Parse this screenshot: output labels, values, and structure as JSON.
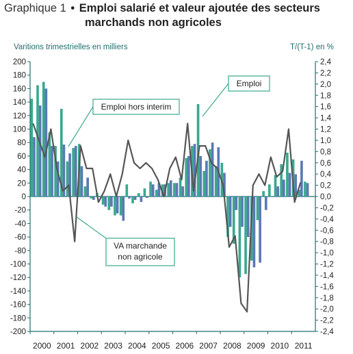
{
  "header": {
    "prefix": "Graphique 1",
    "title_line1": "Emploi salarié et valeur ajoutée des secteurs",
    "title_line2": "marchands non agricoles"
  },
  "colors": {
    "emploi": "#3aa88e",
    "emploi_hors_interim": "#5b78b5",
    "va": "#555555",
    "axis": "#1f6e6e",
    "callout_border": "#3aa88e"
  },
  "chart_data": {
    "type": "bar",
    "ylabel_left": "Varitions trimestrielles en milliers",
    "ylabel_right": "T/(T-1) en %",
    "ylim_left": [
      -200,
      200
    ],
    "ylim_right": [
      -2.4,
      2.4
    ],
    "yticks_left": [
      "200",
      "180",
      "160",
      "140",
      "120",
      "100",
      "80",
      "60",
      "40",
      "20",
      "0",
      "-20",
      "-40",
      "-60",
      "-80",
      "-100",
      "-120",
      "-140",
      "-160",
      "-180",
      "-200"
    ],
    "yticks_right": [
      "2,4",
      "2,2",
      "2,0",
      "1,8",
      "1,6",
      "1,4",
      "1,2",
      "1,0",
      "0,8",
      "0,6",
      "0,4",
      "0,2",
      "0,0",
      "-0,2",
      "-0,4",
      "-0,6",
      "-0,8",
      "-1,0",
      "-1,2",
      "-1,4",
      "-1,6",
      "-1,8",
      "-2,0",
      "-2,2",
      "-2,4"
    ],
    "years": [
      "2000",
      "2001",
      "2002",
      "2003",
      "2004",
      "2005",
      "2006",
      "2007",
      "2008",
      "2009",
      "2010",
      "2011"
    ],
    "series": [
      {
        "name": "Emploi",
        "axis": "left",
        "values": [
          145,
          165,
          170,
          95,
          75,
          130,
          52,
          72,
          78,
          15,
          -3,
          5,
          -12,
          -20,
          -28,
          -28,
          18,
          -10,
          5,
          12,
          22,
          10,
          18,
          20,
          20,
          28,
          57,
          75,
          137,
          38,
          70,
          45,
          50,
          -60,
          -70,
          -120,
          -115,
          -95,
          -35,
          8,
          18,
          32,
          48,
          65,
          55,
          10,
          22
        ]
      },
      {
        "name": "Emploi hors interim",
        "axis": "left",
        "values": [
          88,
          135,
          160,
          75,
          52,
          77,
          64,
          75,
          45,
          28,
          -5,
          0,
          -15,
          -15,
          -25,
          -36,
          -3,
          -5,
          -8,
          -2,
          18,
          20,
          18,
          24,
          20,
          15,
          60,
          78,
          60,
          53,
          80,
          73,
          35,
          -45,
          -20,
          -45,
          -60,
          -105,
          -98,
          -20,
          0,
          15,
          25,
          35,
          33,
          53,
          20
        ]
      },
      {
        "name": "VA marchande non agricole",
        "axis": "right",
        "values": [
          1.3,
          1.0,
          0.7,
          1.2,
          0.5,
          0.1,
          0.2,
          -0.8,
          0.9,
          0.5,
          0.5,
          -0.1,
          0.1,
          0.4,
          0.0,
          0.4,
          1.0,
          0.6,
          0.5,
          0.6,
          0.5,
          0.3,
          0.0,
          0.5,
          0.7,
          0.3,
          1.3,
          0.1,
          0.9,
          0.9,
          0.6,
          0.5,
          0.2,
          -0.9,
          -0.7,
          -1.9,
          -2.05,
          0.2,
          0.4,
          0.2,
          0.7,
          0.35,
          0.45,
          1.2,
          -0.1,
          0.25
        ]
      }
    ],
    "annotations": [
      "Emploi",
      "Emploi hors interim",
      "VA marchande non agricole"
    ]
  }
}
